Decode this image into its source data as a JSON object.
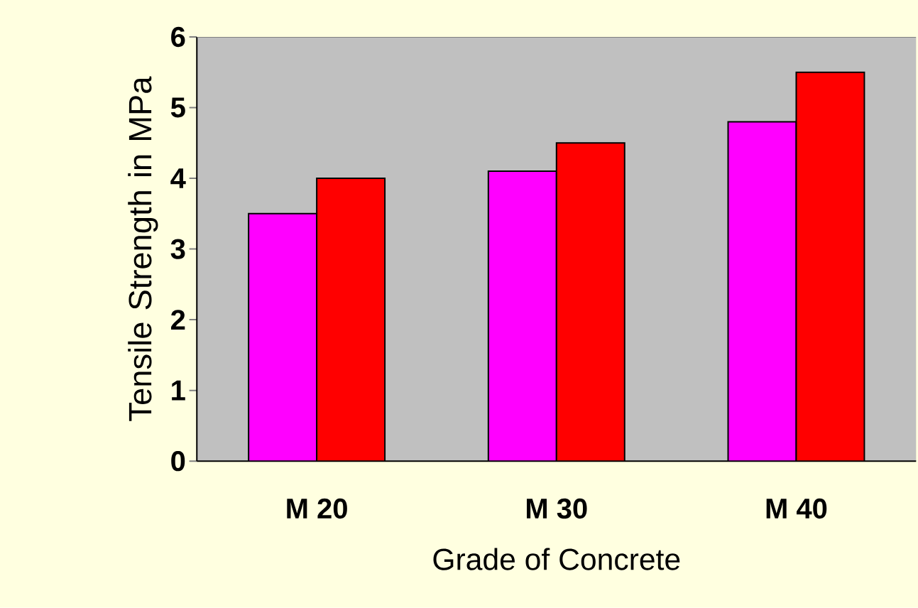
{
  "chart_data": {
    "type": "bar",
    "xlabel": "Grade of Concrete",
    "ylabel": "Tensile Strength in MPa",
    "categories": [
      "M 20",
      "M 30",
      "M 40"
    ],
    "series": [
      {
        "color": "#ff00ff",
        "values": [
          3.5,
          4.1,
          4.8
        ]
      },
      {
        "color": "#ff0000",
        "values": [
          4.0,
          4.5,
          5.5
        ]
      }
    ],
    "ylim": [
      0,
      6
    ],
    "yticks": [
      0,
      1,
      2,
      3,
      4,
      5,
      6
    ],
    "grid": false
  }
}
